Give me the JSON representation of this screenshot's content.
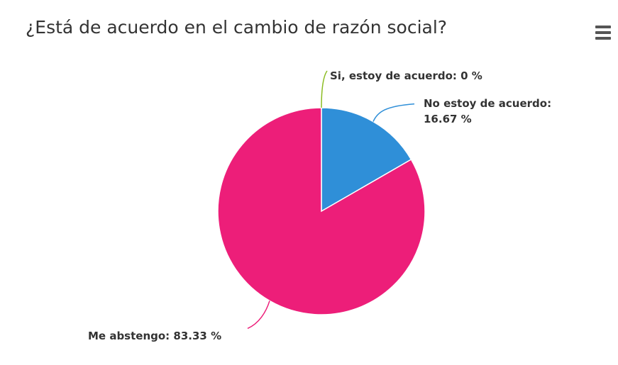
{
  "chart": {
    "title": "¿Está de acuerdo en el cambio de razón social?",
    "menu_icon": "hamburger-menu-icon"
  },
  "chart_data": {
    "type": "pie",
    "title": "¿Está de acuerdo en el cambio de razón social?",
    "unit": "%",
    "slices": [
      {
        "name": "Si, estoy de acuerdo",
        "value": 0,
        "color": "#8bbc21"
      },
      {
        "name": "No estoy de acuerdo",
        "value": 16.67,
        "color": "#2f8fd8"
      },
      {
        "name": "Me abstengo",
        "value": 83.33,
        "color": "#ed1e79"
      }
    ],
    "labels": [
      {
        "line1": "Si, estoy de acuerdo: 0 %",
        "line2": ""
      },
      {
        "line1": "No estoy de acuerdo:",
        "line2": "16.67 %"
      },
      {
        "line1": "Me abstengo: 83.33 %",
        "line2": ""
      }
    ]
  }
}
